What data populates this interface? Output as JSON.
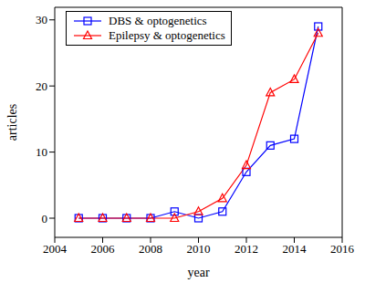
{
  "chart_data": {
    "type": "line",
    "x_label": "year",
    "y_label": "articles",
    "x": [
      2005,
      2006,
      2007,
      2008,
      2009,
      2010,
      2011,
      2012,
      2013,
      2014,
      2015
    ],
    "series": [
      {
        "name": "DBS & optogenetics",
        "color": "#0000ff",
        "marker": "square",
        "values": [
          0,
          0,
          0,
          0,
          1,
          0,
          1,
          7,
          11,
          12,
          29
        ]
      },
      {
        "name": "Epilepsy & optogenetics",
        "color": "#ff0000",
        "marker": "triangle",
        "values": [
          0,
          0,
          0,
          0,
          0,
          1,
          3,
          8,
          19,
          21,
          28
        ]
      }
    ],
    "xlim": [
      2004,
      2016
    ],
    "xticks": [
      2004,
      2006,
      2008,
      2010,
      2012,
      2014,
      2016
    ],
    "ylim": [
      -2.9,
      31.9
    ],
    "yticks": [
      0,
      10,
      20,
      30
    ],
    "grid": false,
    "legend": "upper left"
  }
}
